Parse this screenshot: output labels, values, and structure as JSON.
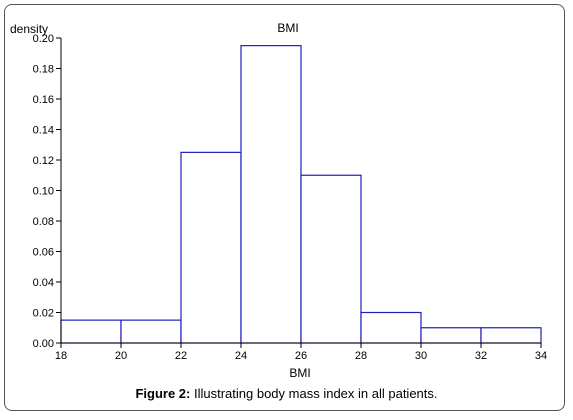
{
  "caption": {
    "label": "Figure 2:",
    "text": " Illustrating body mass index in all patients."
  },
  "chart_data": {
    "type": "bar",
    "title": "BMI",
    "xlabel": "BMI",
    "ylabel": "density",
    "xlim": [
      18,
      34
    ],
    "ylim": [
      0,
      0.2
    ],
    "xticks": [
      "18",
      "20",
      "22",
      "24",
      "26",
      "28",
      "30",
      "32",
      "34"
    ],
    "yticks": [
      "0.00",
      "0.02",
      "0.04",
      "0.06",
      "0.08",
      "0.10",
      "0.12",
      "0.14",
      "0.16",
      "0.18",
      "0.20"
    ],
    "bins": [
      {
        "x0": 18,
        "x1": 20,
        "density": 0.015
      },
      {
        "x0": 20,
        "x1": 22,
        "density": 0.015
      },
      {
        "x0": 22,
        "x1": 24,
        "density": 0.125
      },
      {
        "x0": 24,
        "x1": 26,
        "density": 0.195
      },
      {
        "x0": 26,
        "x1": 28,
        "density": 0.11
      },
      {
        "x0": 28,
        "x1": 30,
        "density": 0.02
      },
      {
        "x0": 30,
        "x1": 32,
        "density": 0.01
      },
      {
        "x0": 32,
        "x1": 34,
        "density": 0.01
      }
    ],
    "bar_edge_color": "#1f1fbf",
    "bar_fill_color": "#ffffff",
    "grid": false
  }
}
